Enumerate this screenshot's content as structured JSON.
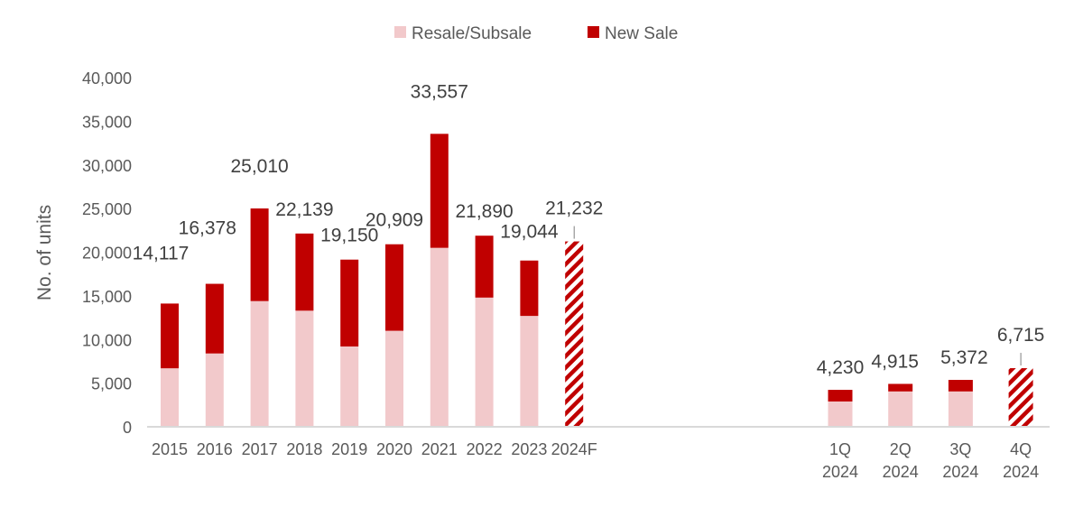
{
  "chart_data": {
    "type": "bar",
    "stacked": true,
    "ylabel": "No. of units",
    "ylim": [
      0,
      40000
    ],
    "yticks": [
      0,
      5000,
      10000,
      15000,
      20000,
      25000,
      30000,
      35000,
      40000
    ],
    "ytick_labels": [
      "0",
      "5,000",
      "10,000",
      "15,000",
      "20,000",
      "25,000",
      "30,000",
      "35,000",
      "40,000"
    ],
    "legend_position": "top-center",
    "colors": {
      "resale": "#F2C9CB",
      "new_sale": "#C00000",
      "forecast": "#C00000",
      "axis": "#D9D9D9"
    },
    "series": [
      {
        "name": "Resale/Subsale",
        "key": "resale"
      },
      {
        "name": "New Sale",
        "key": "new_sale"
      }
    ],
    "groups": [
      {
        "name": "annual",
        "categories": [
          "2015",
          "2016",
          "2017",
          "2018",
          "2019",
          "2020",
          "2021",
          "2022",
          "2023",
          "2024F"
        ],
        "resale": [
          6700,
          8400,
          14400,
          13300,
          9200,
          11000,
          20500,
          14800,
          12700,
          null
        ],
        "totals": [
          14117,
          16378,
          25010,
          22139,
          19150,
          20909,
          33557,
          21890,
          19044,
          21232
        ],
        "total_labels": [
          "14,117",
          "16,378",
          "25,010",
          "22,139",
          "19,150",
          "20,909",
          "33,557",
          "21,890",
          "19,044",
          "21,232"
        ],
        "forecast": [
          false,
          false,
          false,
          false,
          false,
          false,
          false,
          false,
          false,
          true
        ]
      },
      {
        "name": "quarterly",
        "categories": [
          [
            "1Q",
            "2024"
          ],
          [
            "2Q",
            "2024"
          ],
          [
            "3Q",
            "2024"
          ],
          [
            "4Q",
            "2024"
          ]
        ],
        "resale": [
          2900,
          4050,
          4050,
          null
        ],
        "totals": [
          4230,
          4915,
          5372,
          6715
        ],
        "total_labels": [
          "4,230",
          "4,915",
          "5,372",
          "6,715"
        ],
        "forecast": [
          false,
          false,
          false,
          true
        ]
      }
    ]
  }
}
